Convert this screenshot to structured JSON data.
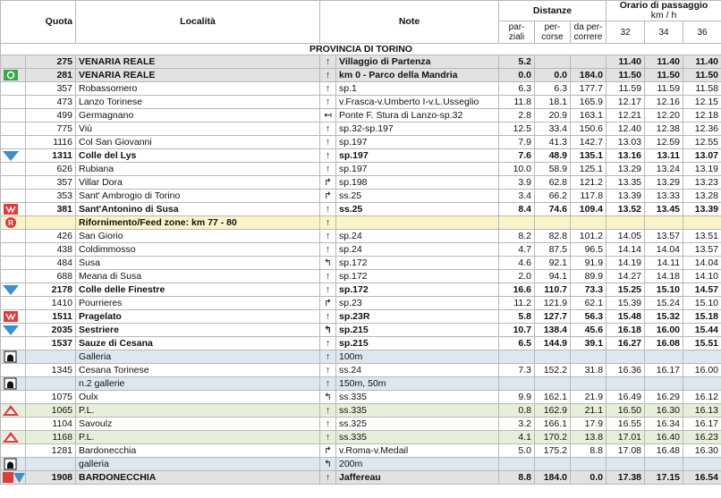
{
  "header": {
    "quota": "Quota",
    "localita": "Località",
    "note": "Note",
    "distanze": "Distanze",
    "parziali": "par-ziali",
    "percorse": "per-corse",
    "da_percorrere": "da per-correre",
    "orario": "Orario di passaggio",
    "kmh": "km / h",
    "speeds": [
      "32",
      "34",
      "36"
    ]
  },
  "province": "PROVINCIA DI TORINO",
  "rows": [
    {
      "style": "major",
      "quota": "275",
      "name": "VENARIA REALE",
      "arrow": "↑",
      "note": "Villaggio di Partenza",
      "parziali": "5.2",
      "t32": "11.40",
      "t34": "11.40",
      "t36": "11.40"
    },
    {
      "style": "major",
      "icon": "start",
      "quota": "281",
      "name": "VENARIA REALE",
      "arrow": "↑",
      "note": "km 0 - Parco della Mandria",
      "parziali": "0.0",
      "percorse": "0.0",
      "da_percorrere": "184.0",
      "t32": "11.50",
      "t34": "11.50",
      "t36": "11.50"
    },
    {
      "quota": "357",
      "name": "Robassomero",
      "arrow": "↑",
      "note": "sp.1",
      "parziali": "6.3",
      "percorse": "6.3",
      "da_percorrere": "177.7",
      "t32": "11.59",
      "t34": "11.59",
      "t36": "11.58"
    },
    {
      "quota": "473",
      "name": "Lanzo Torinese",
      "arrow": "↑",
      "note": "v.Frasca-v.Umberto I-v.L.Usseglio",
      "parziali": "11.8",
      "percorse": "18.1",
      "da_percorrere": "165.9",
      "t32": "12.17",
      "t34": "12.16",
      "t36": "12.15"
    },
    {
      "quota": "499",
      "name": "Germagnano",
      "arrow": "↤",
      "note": "Ponte F. Stura di Lanzo-sp.32",
      "parziali": "2.8",
      "percorse": "20.9",
      "da_percorrere": "163.1",
      "t32": "12.21",
      "t34": "12.20",
      "t36": "12.18"
    },
    {
      "quota": "775",
      "name": "Viù",
      "arrow": "↑",
      "note": "sp.32-sp.197",
      "parziali": "12.5",
      "percorse": "33.4",
      "da_percorrere": "150.6",
      "t32": "12.40",
      "t34": "12.38",
      "t36": "12.36"
    },
    {
      "quota": "1116",
      "name": "Col San Giovanni",
      "arrow": "↑",
      "note": "sp.197",
      "parziali": "7.9",
      "percorse": "41.3",
      "da_percorrere": "142.7",
      "t32": "13.03",
      "t34": "12.59",
      "t36": "12.55"
    },
    {
      "style": "bold",
      "icon": "gpm",
      "quota": "1311",
      "name": "Colle del Lys",
      "arrow": "↑",
      "note": "sp.197",
      "parziali": "7.6",
      "percorse": "48.9",
      "da_percorrere": "135.1",
      "t32": "13.16",
      "t34": "13.11",
      "t36": "13.07"
    },
    {
      "quota": "626",
      "name": "Rubiana",
      "arrow": "↑",
      "note": "sp.197",
      "parziali": "10.0",
      "percorse": "58.9",
      "da_percorrere": "125.1",
      "t32": "13.29",
      "t34": "13.24",
      "t36": "13.19"
    },
    {
      "quota": "357",
      "name": "Villar Dora",
      "arrow": "↱",
      "note": "sp.198",
      "parziali": "3.9",
      "percorse": "62.8",
      "da_percorrere": "121.2",
      "t32": "13.35",
      "t34": "13.29",
      "t36": "13.23"
    },
    {
      "quota": "353",
      "name": "Sant' Ambrogio di Torino",
      "arrow": "↱",
      "note": "ss.25",
      "parziali": "3.4",
      "percorse": "66.2",
      "da_percorrere": "117.8",
      "t32": "13.39",
      "t34": "13.33",
      "t36": "13.28"
    },
    {
      "style": "bold",
      "icon": "sprint",
      "quota": "381",
      "name": "Sant'Antonino di Susa",
      "arrow": "↑",
      "note": "ss.25",
      "parziali": "8.4",
      "percorse": "74.6",
      "da_percorrere": "109.4",
      "t32": "13.52",
      "t34": "13.45",
      "t36": "13.39"
    },
    {
      "style": "feed",
      "icon": "feed",
      "name": "Rifornimento/Feed zone: km 77 - 80",
      "arrow": "↑"
    },
    {
      "quota": "426",
      "name": "San Giorio",
      "arrow": "↑",
      "note": "sp.24",
      "parziali": "8.2",
      "percorse": "82.8",
      "da_percorrere": "101.2",
      "t32": "14.05",
      "t34": "13.57",
      "t36": "13.51"
    },
    {
      "quota": "438",
      "name": "Coldimmosso",
      "arrow": "↑",
      "note": "sp.24",
      "parziali": "4.7",
      "percorse": "87.5",
      "da_percorrere": "96.5",
      "t32": "14.14",
      "t34": "14.04",
      "t36": "13.57"
    },
    {
      "quota": "484",
      "name": "Susa",
      "arrow": "↰",
      "note": "sp.172",
      "parziali": "4.6",
      "percorse": "92.1",
      "da_percorrere": "91.9",
      "t32": "14.19",
      "t34": "14.11",
      "t36": "14.04"
    },
    {
      "quota": "688",
      "name": "Meana di Susa",
      "arrow": "↑",
      "note": "sp.172",
      "parziali": "2.0",
      "percorse": "94.1",
      "da_percorrere": "89.9",
      "t32": "14.27",
      "t34": "14.18",
      "t36": "14.10"
    },
    {
      "style": "bold",
      "icon": "gpm",
      "quota": "2178",
      "name": "Colle delle Finestre",
      "arrow": "↑",
      "note": "sp.172",
      "parziali": "16.6",
      "percorse": "110.7",
      "da_percorrere": "73.3",
      "t32": "15.25",
      "t34": "15.10",
      "t36": "14.57"
    },
    {
      "quota": "1410",
      "name": "Pourrieres",
      "arrow": "↱",
      "note": "sp.23",
      "parziali": "11.2",
      "percorse": "121.9",
      "da_percorrere": "62.1",
      "t32": "15.39",
      "t34": "15.24",
      "t36": "15.10"
    },
    {
      "style": "bold",
      "icon": "sprint",
      "quota": "1511",
      "name": "Pragelato",
      "arrow": "↑",
      "note": "sp.23R",
      "parziali": "5.8",
      "percorse": "127.7",
      "da_percorrere": "56.3",
      "t32": "15.48",
      "t34": "15.32",
      "t36": "15.18"
    },
    {
      "style": "bold",
      "icon": "gpm",
      "quota": "2035",
      "name": "Sestriere",
      "arrow": "↰",
      "note": "sp.215",
      "parziali": "10.7",
      "percorse": "138.4",
      "da_percorrere": "45.6",
      "t32": "16.18",
      "t34": "16.00",
      "t36": "15.44"
    },
    {
      "style": "bold",
      "quota": "1537",
      "name": "Sauze di Cesana",
      "arrow": "↑",
      "note": "sp.215",
      "parziali": "6.5",
      "percorse": "144.9",
      "da_percorrere": "39.1",
      "t32": "16.27",
      "t34": "16.08",
      "t36": "15.51"
    },
    {
      "style": "tunnel",
      "icon": "tunnel",
      "name": "Galleria",
      "arrow": "↑",
      "note": "100m"
    },
    {
      "quota": "1345",
      "name": "Cesana Torinese",
      "arrow": "↑",
      "note": "ss.24",
      "parziali": "7.3",
      "percorse": "152.2",
      "da_percorrere": "31.8",
      "t32": "16.36",
      "t34": "16.17",
      "t36": "16.00"
    },
    {
      "style": "tunnel",
      "icon": "tunnel",
      "name": "n.2 gallerie",
      "arrow": "↑",
      "note": "150m, 50m"
    },
    {
      "quota": "1075",
      "name": "Oulx",
      "arrow": "↰",
      "note": "ss.335",
      "parziali": "9.9",
      "percorse": "162.1",
      "da_percorrere": "21.9",
      "t32": "16.49",
      "t34": "16.29",
      "t36": "16.12"
    },
    {
      "style": "crossing",
      "icon": "crossing",
      "quota": "1065",
      "name": "P.L.",
      "arrow": "↑",
      "note": "ss.335",
      "parziali": "0.8",
      "percorse": "162.9",
      "da_percorrere": "21.1",
      "t32": "16.50",
      "t34": "16.30",
      "t36": "16.13"
    },
    {
      "quota": "1104",
      "name": "Savoulz",
      "arrow": "↑",
      "note": "ss.325",
      "parziali": "3.2",
      "percorse": "166.1",
      "da_percorrere": "17.9",
      "t32": "16.55",
      "t34": "16.34",
      "t36": "16.17"
    },
    {
      "style": "crossing",
      "icon": "crossing",
      "quota": "1168",
      "name": "P.L.",
      "arrow": "↑",
      "note": "ss.335",
      "parziali": "4.1",
      "percorse": "170.2",
      "da_percorrere": "13.8",
      "t32": "17.01",
      "t34": "16.40",
      "t36": "16.23"
    },
    {
      "quota": "1281",
      "name": "Bardonecchia",
      "arrow": "↱",
      "note": "v.Roma-v.Medail",
      "parziali": "5.0",
      "percorse": "175.2",
      "da_percorrere": "8.8",
      "t32": "17.08",
      "t34": "16.48",
      "t36": "16.30"
    },
    {
      "style": "tunnel",
      "icon": "tunnel",
      "name": "galleria",
      "arrow": "↰",
      "note": "200m"
    },
    {
      "style": "major",
      "icon": "finish",
      "quota": "1908",
      "name": "BARDONECCHIA",
      "arrow": "↑",
      "note": "Jaffereau",
      "parziali": "8.8",
      "percorse": "184.0",
      "da_percorrere": "0.0",
      "t32": "17.38",
      "t34": "17.15",
      "t36": "16.54"
    }
  ]
}
